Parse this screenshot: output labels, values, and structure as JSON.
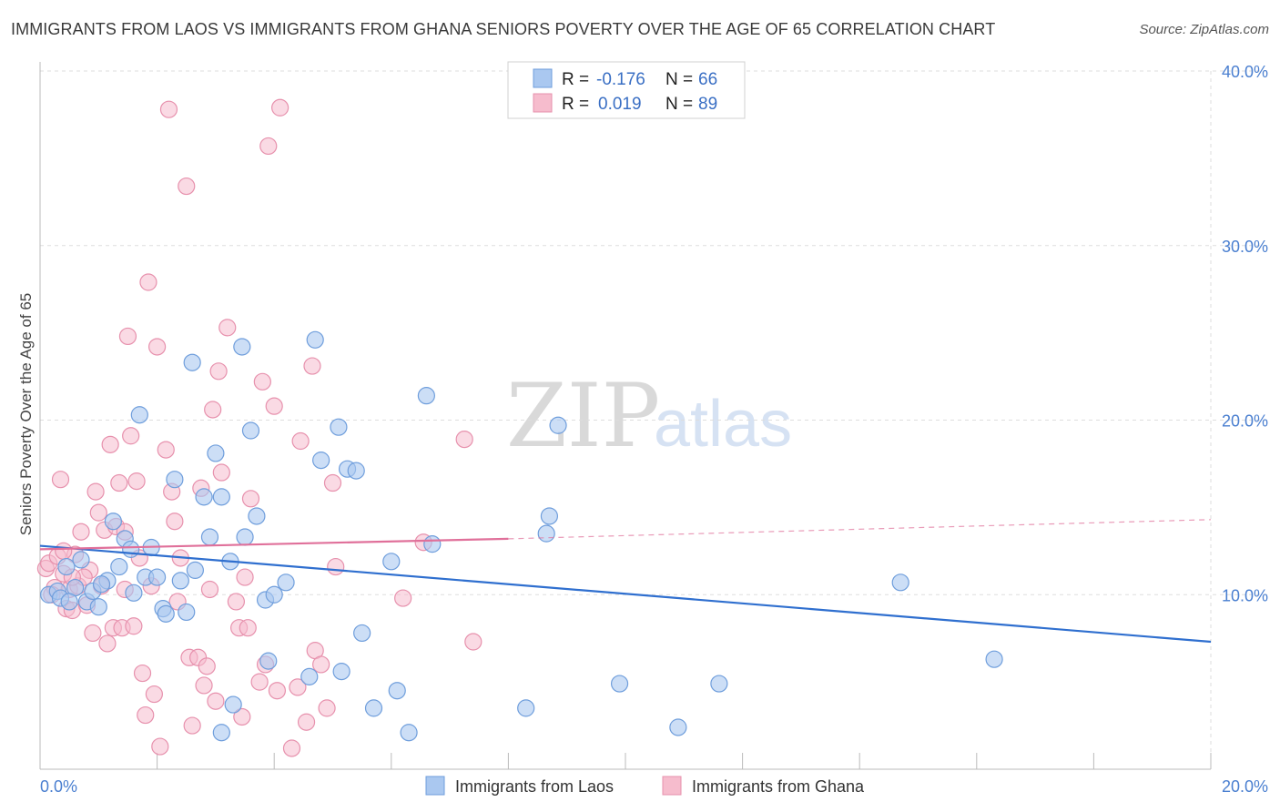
{
  "header": {
    "title": "IMMIGRANTS FROM LAOS VS IMMIGRANTS FROM GHANA SENIORS POVERTY OVER THE AGE OF 65 CORRELATION CHART",
    "source": "Source: ZipAtlas.com"
  },
  "watermark": {
    "zip": "ZIP",
    "atlas": "atlas"
  },
  "colors": {
    "laos_fill": "#aac8f0",
    "laos_stroke": "#6f9edc",
    "laos_line": "#2f6fcf",
    "ghana_fill": "#f6bccd",
    "ghana_stroke": "#e791ad",
    "ghana_line": "#e0709a",
    "grid": "#dddddd",
    "tick_text": "#4a7fd0"
  },
  "legend": {
    "r_label": "R =",
    "n_label": "N =",
    "laos": {
      "r": "-0.176",
      "n": "66"
    },
    "ghana": {
      "r": "0.019",
      "n": "89"
    }
  },
  "chart_data": {
    "type": "scatter",
    "ylabel": "Seniors Poverty Over the Age of 65",
    "xlim": [
      0,
      20
    ],
    "ylim": [
      0,
      40
    ],
    "x_tick_labels": [
      "0.0%",
      "20.0%"
    ],
    "y_ticks": [
      10,
      20,
      30,
      40
    ],
    "y_tick_labels": [
      "10.0%",
      "20.0%",
      "30.0%",
      "40.0%"
    ],
    "series": [
      {
        "name": "Immigrants from Laos",
        "trend": {
          "x0": 0,
          "y0": 12.8,
          "x1": 20,
          "y1": 7.3
        },
        "points": [
          [
            0.15,
            10.0
          ],
          [
            0.3,
            10.2
          ],
          [
            0.35,
            9.8
          ],
          [
            0.45,
            11.6
          ],
          [
            0.6,
            10.4
          ],
          [
            0.7,
            12.0
          ],
          [
            0.8,
            9.6
          ],
          [
            0.9,
            10.2
          ],
          [
            1.0,
            9.3
          ],
          [
            1.15,
            10.8
          ],
          [
            1.25,
            14.2
          ],
          [
            1.35,
            11.6
          ],
          [
            1.45,
            13.2
          ],
          [
            1.55,
            12.6
          ],
          [
            1.6,
            10.1
          ],
          [
            1.7,
            20.3
          ],
          [
            1.8,
            11.0
          ],
          [
            1.9,
            12.7
          ],
          [
            2.0,
            11.0
          ],
          [
            2.1,
            9.2
          ],
          [
            2.15,
            8.9
          ],
          [
            2.3,
            16.6
          ],
          [
            2.4,
            10.8
          ],
          [
            2.5,
            9.0
          ],
          [
            2.6,
            23.3
          ],
          [
            2.65,
            11.4
          ],
          [
            2.8,
            15.6
          ],
          [
            2.9,
            13.3
          ],
          [
            3.0,
            18.1
          ],
          [
            3.1,
            15.6
          ],
          [
            3.1,
            2.1
          ],
          [
            3.25,
            11.9
          ],
          [
            3.3,
            3.7
          ],
          [
            3.45,
            24.2
          ],
          [
            3.5,
            13.3
          ],
          [
            3.6,
            19.4
          ],
          [
            3.7,
            14.5
          ],
          [
            3.85,
            9.7
          ],
          [
            3.9,
            6.2
          ],
          [
            4.0,
            10.0
          ],
          [
            4.2,
            10.7
          ],
          [
            4.6,
            5.3
          ],
          [
            4.7,
            24.6
          ],
          [
            4.8,
            17.7
          ],
          [
            5.1,
            19.6
          ],
          [
            5.15,
            5.6
          ],
          [
            5.25,
            17.2
          ],
          [
            5.4,
            17.1
          ],
          [
            5.5,
            7.8
          ],
          [
            5.7,
            3.5
          ],
          [
            6.0,
            11.9
          ],
          [
            6.1,
            4.5
          ],
          [
            6.3,
            2.1
          ],
          [
            6.6,
            21.4
          ],
          [
            6.7,
            12.9
          ],
          [
            8.3,
            3.5
          ],
          [
            8.65,
            13.5
          ],
          [
            8.7,
            14.5
          ],
          [
            8.85,
            19.7
          ],
          [
            9.9,
            4.9
          ],
          [
            10.9,
            2.4
          ],
          [
            11.6,
            4.9
          ],
          [
            14.7,
            10.7
          ],
          [
            16.3,
            6.3
          ],
          [
            0.5,
            9.6
          ],
          [
            1.05,
            10.6
          ]
        ]
      },
      {
        "name": "Immigrants from Ghana",
        "trend": {
          "x0": 0,
          "y0": 12.6,
          "x1": 8.0,
          "y1": 13.2,
          "dash_x1": 20,
          "dash_y1": 14.3
        },
        "points": [
          [
            0.1,
            11.5
          ],
          [
            0.15,
            11.8
          ],
          [
            0.25,
            10.4
          ],
          [
            0.3,
            12.2
          ],
          [
            0.35,
            16.6
          ],
          [
            0.4,
            11.2
          ],
          [
            0.45,
            9.2
          ],
          [
            0.5,
            10.3
          ],
          [
            0.55,
            9.1
          ],
          [
            0.6,
            12.3
          ],
          [
            0.7,
            13.6
          ],
          [
            0.8,
            9.4
          ],
          [
            0.85,
            11.4
          ],
          [
            0.9,
            7.8
          ],
          [
            0.95,
            15.9
          ],
          [
            1.0,
            14.7
          ],
          [
            1.05,
            10.5
          ],
          [
            1.1,
            13.7
          ],
          [
            1.15,
            7.2
          ],
          [
            1.2,
            18.6
          ],
          [
            1.25,
            8.1
          ],
          [
            1.3,
            13.9
          ],
          [
            1.35,
            16.4
          ],
          [
            1.4,
            8.1
          ],
          [
            1.45,
            13.6
          ],
          [
            1.5,
            24.8
          ],
          [
            1.55,
            19.1
          ],
          [
            1.6,
            8.2
          ],
          [
            1.65,
            16.5
          ],
          [
            1.7,
            12.1
          ],
          [
            1.75,
            5.5
          ],
          [
            1.8,
            3.1
          ],
          [
            1.85,
            27.9
          ],
          [
            1.9,
            10.5
          ],
          [
            1.95,
            4.3
          ],
          [
            2.0,
            24.2
          ],
          [
            2.05,
            1.3
          ],
          [
            2.15,
            18.3
          ],
          [
            2.2,
            37.8
          ],
          [
            2.25,
            15.9
          ],
          [
            2.3,
            14.2
          ],
          [
            2.4,
            12.1
          ],
          [
            2.5,
            33.4
          ],
          [
            2.55,
            6.4
          ],
          [
            2.6,
            2.5
          ],
          [
            2.7,
            6.4
          ],
          [
            2.75,
            16.1
          ],
          [
            2.8,
            4.8
          ],
          [
            2.85,
            5.9
          ],
          [
            2.95,
            20.6
          ],
          [
            3.0,
            3.9
          ],
          [
            3.05,
            22.8
          ],
          [
            3.1,
            17.0
          ],
          [
            3.2,
            25.3
          ],
          [
            3.35,
            9.6
          ],
          [
            3.4,
            8.1
          ],
          [
            3.45,
            3.0
          ],
          [
            3.5,
            11.0
          ],
          [
            3.55,
            8.1
          ],
          [
            3.6,
            15.5
          ],
          [
            3.75,
            5.0
          ],
          [
            3.8,
            22.2
          ],
          [
            3.85,
            6.0
          ],
          [
            3.9,
            35.7
          ],
          [
            4.0,
            20.8
          ],
          [
            4.05,
            4.5
          ],
          [
            4.1,
            37.9
          ],
          [
            4.3,
            1.2
          ],
          [
            4.4,
            4.7
          ],
          [
            4.45,
            18.8
          ],
          [
            4.55,
            2.7
          ],
          [
            4.65,
            23.1
          ],
          [
            4.7,
            6.8
          ],
          [
            4.8,
            6.0
          ],
          [
            4.9,
            3.5
          ],
          [
            5.0,
            16.4
          ],
          [
            5.05,
            11.6
          ],
          [
            6.2,
            9.8
          ],
          [
            6.55,
            13.0
          ],
          [
            7.25,
            18.9
          ],
          [
            7.4,
            7.3
          ],
          [
            0.2,
            10.0
          ],
          [
            0.65,
            10.5
          ],
          [
            0.75,
            11.0
          ],
          [
            1.45,
            10.3
          ],
          [
            2.35,
            9.6
          ],
          [
            2.9,
            10.3
          ],
          [
            0.4,
            12.5
          ],
          [
            0.55,
            11.0
          ]
        ]
      }
    ]
  },
  "bottom_legend": {
    "laos_label": "Immigrants from Laos",
    "ghana_label": "Immigrants from Ghana"
  }
}
